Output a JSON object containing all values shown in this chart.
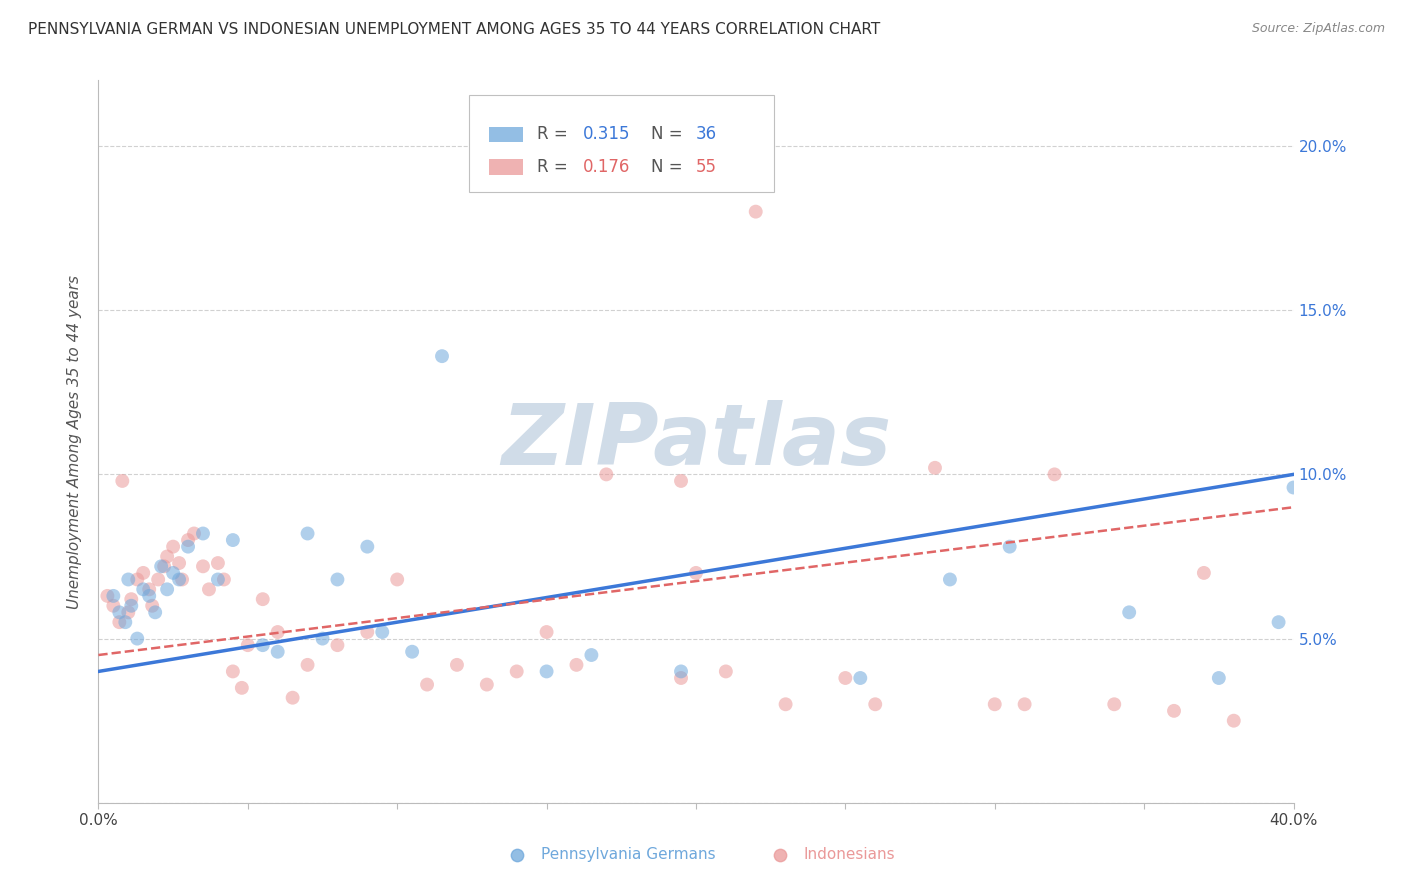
{
  "title": "PENNSYLVANIA GERMAN VS INDONESIAN UNEMPLOYMENT AMONG AGES 35 TO 44 YEARS CORRELATION CHART",
  "source": "Source: ZipAtlas.com",
  "ylabel": "Unemployment Among Ages 35 to 44 years",
  "xlim": [
    0.0,
    0.4
  ],
  "ylim": [
    0.0,
    0.22
  ],
  "background_color": "#ffffff",
  "grid_color": "#cccccc",
  "watermark_text": "ZIPatlas",
  "watermark_color": "#d0dce8",
  "blue_color": "#6fa8dc",
  "pink_color": "#ea9999",
  "blue_line_color": "#3c78d8",
  "pink_line_color": "#e06666",
  "legend_blue_r": "0.315",
  "legend_blue_n": "36",
  "legend_pink_r": "0.176",
  "legend_pink_n": "55",
  "blue_scatter_x": [
    0.005,
    0.007,
    0.009,
    0.01,
    0.011,
    0.013,
    0.015,
    0.017,
    0.019,
    0.021,
    0.023,
    0.025,
    0.027,
    0.03,
    0.035,
    0.04,
    0.045,
    0.055,
    0.06,
    0.07,
    0.075,
    0.08,
    0.09,
    0.095,
    0.105,
    0.115,
    0.15,
    0.165,
    0.195,
    0.255,
    0.285,
    0.305,
    0.345,
    0.375,
    0.395,
    0.4
  ],
  "blue_scatter_y": [
    0.063,
    0.058,
    0.055,
    0.068,
    0.06,
    0.05,
    0.065,
    0.063,
    0.058,
    0.072,
    0.065,
    0.07,
    0.068,
    0.078,
    0.082,
    0.068,
    0.08,
    0.048,
    0.046,
    0.082,
    0.05,
    0.068,
    0.078,
    0.052,
    0.046,
    0.136,
    0.04,
    0.045,
    0.04,
    0.038,
    0.068,
    0.078,
    0.058,
    0.038,
    0.055,
    0.096
  ],
  "pink_scatter_x": [
    0.003,
    0.005,
    0.007,
    0.008,
    0.01,
    0.011,
    0.013,
    0.015,
    0.017,
    0.018,
    0.02,
    0.022,
    0.023,
    0.025,
    0.027,
    0.028,
    0.03,
    0.032,
    0.035,
    0.037,
    0.04,
    0.042,
    0.045,
    0.048,
    0.05,
    0.055,
    0.06,
    0.065,
    0.07,
    0.08,
    0.09,
    0.1,
    0.11,
    0.12,
    0.13,
    0.14,
    0.15,
    0.16,
    0.17,
    0.195,
    0.2,
    0.21,
    0.22,
    0.23,
    0.25,
    0.26,
    0.28,
    0.3,
    0.31,
    0.32,
    0.34,
    0.36,
    0.37,
    0.38,
    0.195
  ],
  "pink_scatter_y": [
    0.063,
    0.06,
    0.055,
    0.098,
    0.058,
    0.062,
    0.068,
    0.07,
    0.065,
    0.06,
    0.068,
    0.072,
    0.075,
    0.078,
    0.073,
    0.068,
    0.08,
    0.082,
    0.072,
    0.065,
    0.073,
    0.068,
    0.04,
    0.035,
    0.048,
    0.062,
    0.052,
    0.032,
    0.042,
    0.048,
    0.052,
    0.068,
    0.036,
    0.042,
    0.036,
    0.04,
    0.052,
    0.042,
    0.1,
    0.098,
    0.07,
    0.04,
    0.18,
    0.03,
    0.038,
    0.03,
    0.102,
    0.03,
    0.03,
    0.1,
    0.03,
    0.028,
    0.07,
    0.025,
    0.038
  ],
  "marker_size": 100,
  "marker_alpha": 0.55,
  "title_fontsize": 11,
  "axis_label_fontsize": 11,
  "tick_fontsize": 11,
  "legend_fontsize": 12,
  "source_fontsize": 9
}
